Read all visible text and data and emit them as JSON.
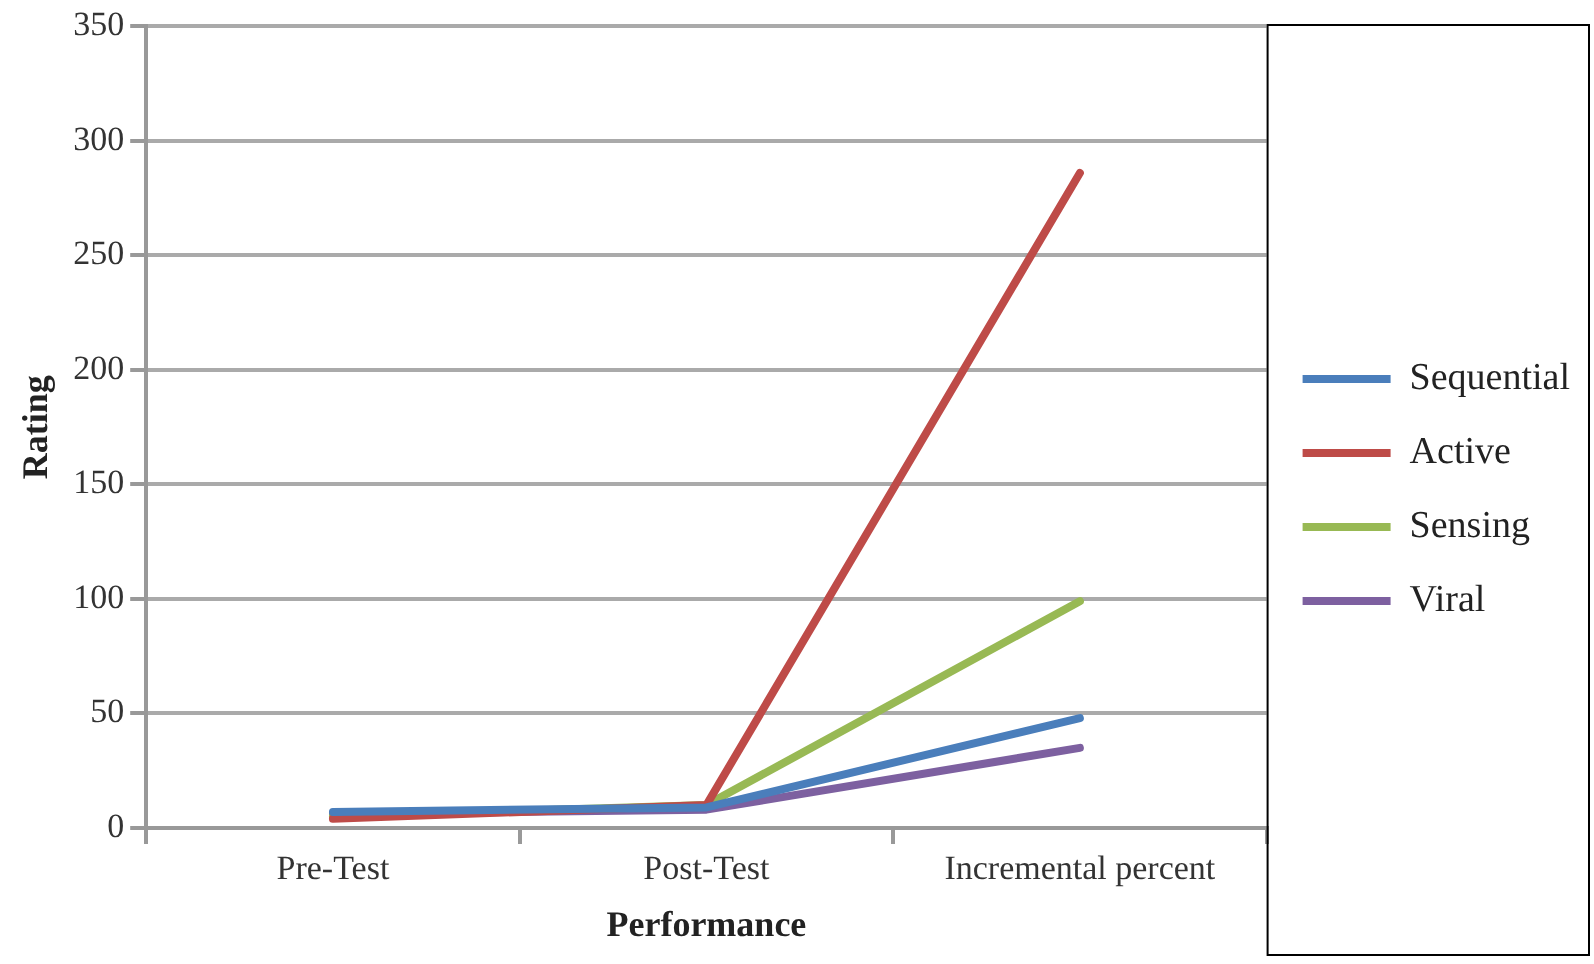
{
  "chart_data": {
    "type": "line",
    "xlabel": "Performance",
    "ylabel": "Rating",
    "categories": [
      "Pre-Test",
      "Post-Test",
      "Incremental percent"
    ],
    "series": [
      {
        "name": "Sequential",
        "color": "#4a7ebb",
        "values": [
          7,
          9,
          48
        ]
      },
      {
        "name": "Active",
        "color": "#be4b48",
        "values": [
          4,
          10,
          286
        ]
      },
      {
        "name": "Sensing",
        "color": "#98b954",
        "values": [
          5,
          10,
          99
        ]
      },
      {
        "name": "Viral",
        "color": "#7d60a0",
        "values": [
          6,
          8,
          35
        ]
      }
    ],
    "ylim": [
      0,
      350
    ],
    "yticks": [
      0,
      50,
      100,
      150,
      200,
      250,
      300,
      350
    ],
    "grid": "y",
    "legend": "right",
    "marker": "none",
    "line_style": "solid"
  }
}
